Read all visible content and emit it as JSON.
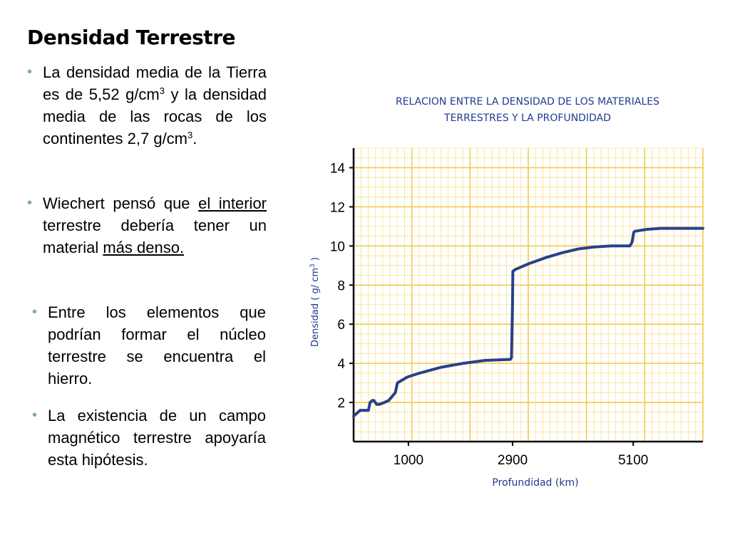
{
  "slide": {
    "title": "Densidad Terrestre",
    "bullets": [
      {
        "pre": "La densidad media de la Tierra es de 5,52 g/cm",
        "sup1": "3",
        "mid": " y la densidad media de las rocas de los continentes 2,7 g/cm",
        "sup2": "3",
        "post": "."
      },
      {
        "t1": "Wiechert pensó que ",
        "u1": "el interior",
        "t2": " terrestre debería tener un material ",
        "u2": "más denso."
      },
      {
        "text": "Entre los elementos que podrían formar el núcleo terrestre se encuentra el hierro."
      },
      {
        "text": "La existencia de un campo magnético terrestre apoyaría esta hipótesis."
      }
    ],
    "bullet_symbol": "•"
  },
  "colors": {
    "accent": "#1f3c8f",
    "curve": "#27408b",
    "grid_major": "#f2c94c",
    "grid_minor": "#f7e08a",
    "bullet": "#7fa7b7"
  },
  "chart_data": {
    "type": "line",
    "title_line1": "RELACION ENTRE LA DENSIDAD DE LOS MATERIALES",
    "title_line2": "TERRESTRES Y LA PROFUNDIDAD",
    "xlabel": "Profundidad (km)",
    "ylabel": "Densidad ( g/ cm",
    "ylabel_sup": "3",
    "ylabel_end": " )",
    "xlim": [
      0,
      6371
    ],
    "ylim": [
      0,
      15
    ],
    "x_ticks": [
      {
        "value": 1000,
        "label": "1000"
      },
      {
        "value": 2900,
        "label": "2900"
      },
      {
        "value": 5100,
        "label": "5100"
      }
    ],
    "y_ticks": [
      {
        "value": 2,
        "label": "2"
      },
      {
        "value": 4,
        "label": "4"
      },
      {
        "value": 6,
        "label": "6"
      },
      {
        "value": 8,
        "label": "8"
      },
      {
        "value": 10,
        "label": "10"
      },
      {
        "value": 12,
        "label": "12"
      },
      {
        "value": 14,
        "label": "14"
      }
    ],
    "series": [
      {
        "name": "Densidad",
        "x": [
          0,
          80,
          120,
          270,
          300,
          340,
          370,
          420,
          470,
          560,
          640,
          760,
          800,
          860,
          980,
          1200,
          1600,
          2000,
          2400,
          2860,
          2880,
          2900,
          2905,
          2950,
          3200,
          3500,
          3800,
          4100,
          4400,
          4700,
          5040,
          5080,
          5110,
          5130,
          5350,
          5600,
          5800,
          6371
        ],
        "y": [
          1.3,
          1.5,
          1.6,
          1.6,
          2.0,
          2.1,
          2.1,
          1.9,
          1.9,
          2.0,
          2.1,
          2.5,
          3.0,
          3.1,
          3.3,
          3.5,
          3.8,
          4.0,
          4.15,
          4.2,
          4.3,
          7.2,
          8.7,
          8.8,
          9.1,
          9.4,
          9.65,
          9.85,
          9.95,
          10.0,
          10.0,
          10.2,
          10.7,
          10.75,
          10.85,
          10.9,
          10.9,
          10.9
        ]
      }
    ]
  }
}
